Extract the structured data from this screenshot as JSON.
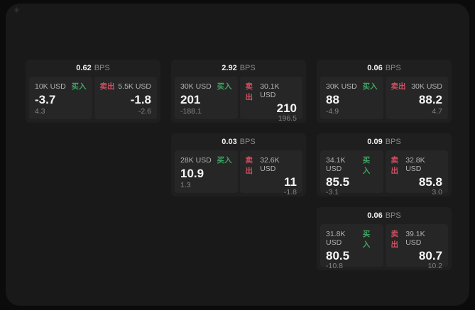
{
  "app": {
    "sparkle_icon_glyph": "✳"
  },
  "colors": {
    "buy_green": "#3da661",
    "sell_red": "#cf4f60",
    "panel_bg": "#191919",
    "card_bg": "#1f1f1f",
    "tile_bg": "#262626"
  },
  "labels": {
    "bps_unit": "BPS",
    "buy": "买入",
    "sell": "卖出"
  },
  "cards": [
    {
      "row": 1,
      "col": 1,
      "bps": "0.62",
      "buy": {
        "amount": "10K USD",
        "price": "-3.7",
        "delta": "4.3"
      },
      "sell": {
        "amount": "5.5K USD",
        "price": "-1.8",
        "delta": "-2.6"
      }
    },
    {
      "row": 1,
      "col": 2,
      "bps": "2.92",
      "buy": {
        "amount": "30K USD",
        "price": "201",
        "delta": "-188.1"
      },
      "sell": {
        "amount": "30.1K USD",
        "price": "210",
        "delta": "196.5"
      }
    },
    {
      "row": 1,
      "col": 3,
      "bps": "0.06",
      "buy": {
        "amount": "30K USD",
        "price": "88",
        "delta": "-4.9"
      },
      "sell": {
        "amount": "30K USD",
        "price": "88.2",
        "delta": "4.7"
      }
    },
    {
      "row": 2,
      "col": 2,
      "bps": "0.03",
      "buy": {
        "amount": "28K USD",
        "price": "10.9",
        "delta": "1.3"
      },
      "sell": {
        "amount": "32.6K USD",
        "price": "11",
        "delta": "-1.8"
      }
    },
    {
      "row": 2,
      "col": 3,
      "bps": "0.09",
      "buy": {
        "amount": "34.1K USD",
        "price": "85.5",
        "delta": "-3.1"
      },
      "sell": {
        "amount": "32.8K USD",
        "price": "85.8",
        "delta": "3.0"
      }
    },
    {
      "row": 3,
      "col": 3,
      "bps": "0.06",
      "buy": {
        "amount": "31.8K USD",
        "price": "80.5",
        "delta": "-10.8"
      },
      "sell": {
        "amount": "39.1K USD",
        "price": "80.7",
        "delta": "10.2"
      }
    }
  ]
}
